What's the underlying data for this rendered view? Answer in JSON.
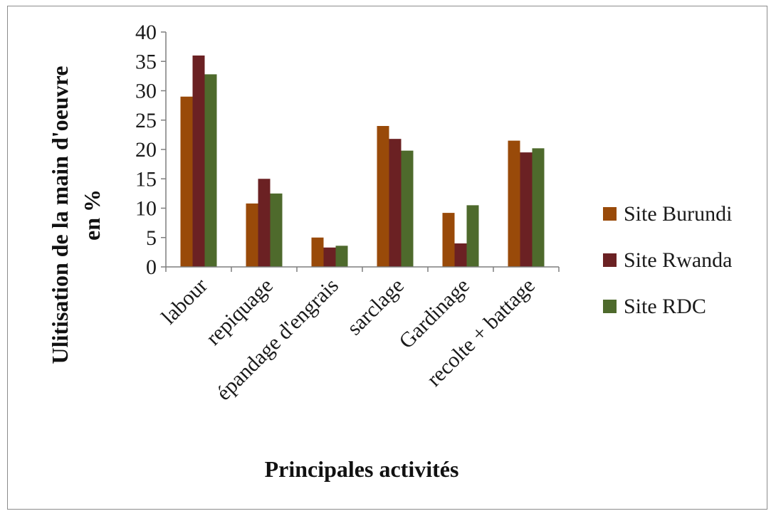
{
  "chart_data": {
    "type": "bar",
    "categories": [
      "labour",
      "repiquage",
      "épandage d'engrais",
      "sarclage",
      "Gardinage",
      "recolte + battage"
    ],
    "series": [
      {
        "name": "Site Burundi",
        "color": "#994a09",
        "values": [
          29,
          10.8,
          5,
          24,
          9.2,
          21.5
        ]
      },
      {
        "name": "Site Rwanda",
        "color": "#6b2123",
        "values": [
          36,
          15,
          3.3,
          21.8,
          4,
          19.5
        ]
      },
      {
        "name": "Site RDC",
        "color": "#4e6a2c",
        "values": [
          32.8,
          12.5,
          3.6,
          19.8,
          10.5,
          20.2
        ]
      }
    ],
    "yticks": [
      0,
      5,
      10,
      15,
      20,
      25,
      30,
      35,
      40
    ],
    "ylim": [
      0,
      40
    ],
    "ylabel_line1": "Ulitisation de la main d'oeuvre",
    "ylabel_line2": "en %",
    "xlabel": "Principales activités",
    "legend_position": "right",
    "grid": false
  }
}
